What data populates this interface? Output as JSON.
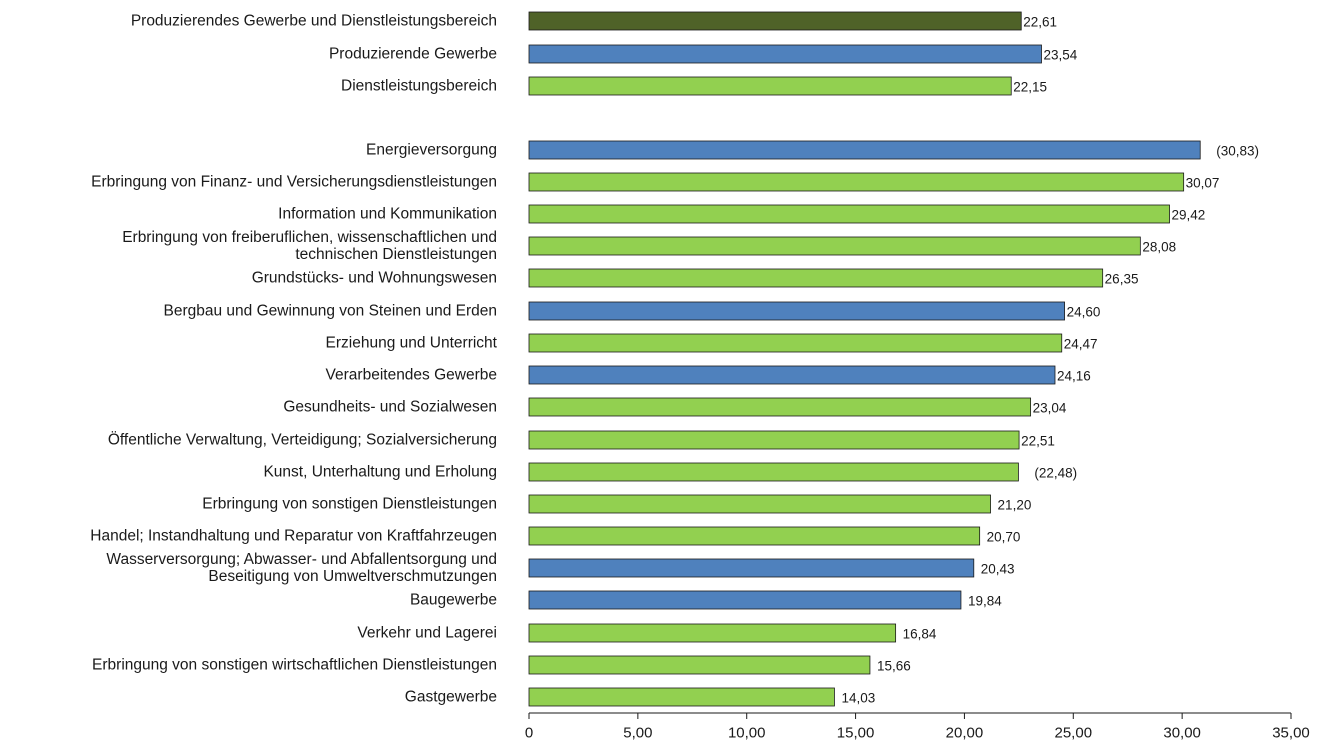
{
  "chart_data": {
    "type": "bar",
    "orientation": "horizontal",
    "title": "",
    "xlabel": "",
    "ylabel": "",
    "xlim": [
      0,
      35
    ],
    "x_ticks": [
      "0",
      "5,00",
      "10,00",
      "15,00",
      "20,00",
      "25,00",
      "30,00",
      "35,00"
    ],
    "x_tick_values": [
      0,
      5,
      10,
      15,
      20,
      25,
      30,
      35
    ],
    "grid": false,
    "legend": null,
    "colors": {
      "total": "#4f6228",
      "produzierend": "#4f81bd",
      "dienstleistung": "#92d050",
      "edge": "#1a1a1a"
    },
    "bars": [
      {
        "lines": [
          "Produzierendes Gewerbe und Dienstleistungsbereich"
        ],
        "value": 22.61,
        "label": "22,61",
        "group": "total"
      },
      {
        "lines": [
          "Produzierende Gewerbe"
        ],
        "value": 23.54,
        "label": "23,54",
        "group": "produzierend"
      },
      {
        "lines": [
          "Dienstleistungsbereich"
        ],
        "value": 22.15,
        "label": "22,15",
        "group": "dienstleistung"
      },
      {
        "lines": [
          "Energieversorgung"
        ],
        "value": 30.83,
        "label": "(30,83)",
        "group": "produzierend"
      },
      {
        "lines": [
          "Erbringung von Finanz- und Versicherungsdienstleistungen"
        ],
        "value": 30.07,
        "label": "30,07",
        "group": "dienstleistung"
      },
      {
        "lines": [
          "Information und Kommunikation"
        ],
        "value": 29.42,
        "label": "29,42",
        "group": "dienstleistung"
      },
      {
        "lines": [
          "Erbringung von freiberuflichen, wissenschaftlichen und",
          "technischen Dienstleistungen"
        ],
        "value": 28.08,
        "label": "28,08",
        "group": "dienstleistung"
      },
      {
        "lines": [
          "Grundstücks- und Wohnungswesen"
        ],
        "value": 26.35,
        "label": "26,35",
        "group": "dienstleistung"
      },
      {
        "lines": [
          "Bergbau und Gewinnung von Steinen und Erden"
        ],
        "value": 24.6,
        "label": "24,60",
        "group": "produzierend"
      },
      {
        "lines": [
          "Erziehung und Unterricht"
        ],
        "value": 24.47,
        "label": "24,47",
        "group": "dienstleistung"
      },
      {
        "lines": [
          "Verarbeitendes Gewerbe"
        ],
        "value": 24.16,
        "label": "24,16",
        "group": "produzierend"
      },
      {
        "lines": [
          "Gesundheits- und Sozialwesen"
        ],
        "value": 23.04,
        "label": "23,04",
        "group": "dienstleistung"
      },
      {
        "lines": [
          "Öffentliche Verwaltung, Verteidigung; Sozialversicherung"
        ],
        "value": 22.51,
        "label": "22,51",
        "group": "dienstleistung"
      },
      {
        "lines": [
          "Kunst, Unterhaltung und Erholung"
        ],
        "value": 22.48,
        "label": "(22,48)",
        "group": "dienstleistung"
      },
      {
        "lines": [
          "Erbringung von sonstigen Dienstleistungen"
        ],
        "value": 21.2,
        "label": "21,20",
        "group": "dienstleistung"
      },
      {
        "lines": [
          "Handel; Instandhaltung und Reparatur von Kraftfahrzeugen"
        ],
        "value": 20.7,
        "label": "20,70",
        "group": "dienstleistung"
      },
      {
        "lines": [
          "Wasserversorgung; Abwasser- und Abfallentsorgung und",
          "Beseitigung von Umweltverschmutzungen"
        ],
        "value": 20.43,
        "label": "20,43",
        "group": "produzierend"
      },
      {
        "lines": [
          "Baugewerbe"
        ],
        "value": 19.84,
        "label": "19,84",
        "group": "produzierend"
      },
      {
        "lines": [
          "Verkehr und Lagerei"
        ],
        "value": 16.84,
        "label": "16,84",
        "group": "dienstleistung"
      },
      {
        "lines": [
          "Erbringung von sonstigen wirtschaftlichen Dienstleistungen"
        ],
        "value": 15.66,
        "label": "15,66",
        "group": "dienstleistung"
      },
      {
        "lines": [
          "Gastgewerbe"
        ],
        "value": 14.03,
        "label": "14,03",
        "group": "dienstleistung"
      }
    ]
  }
}
